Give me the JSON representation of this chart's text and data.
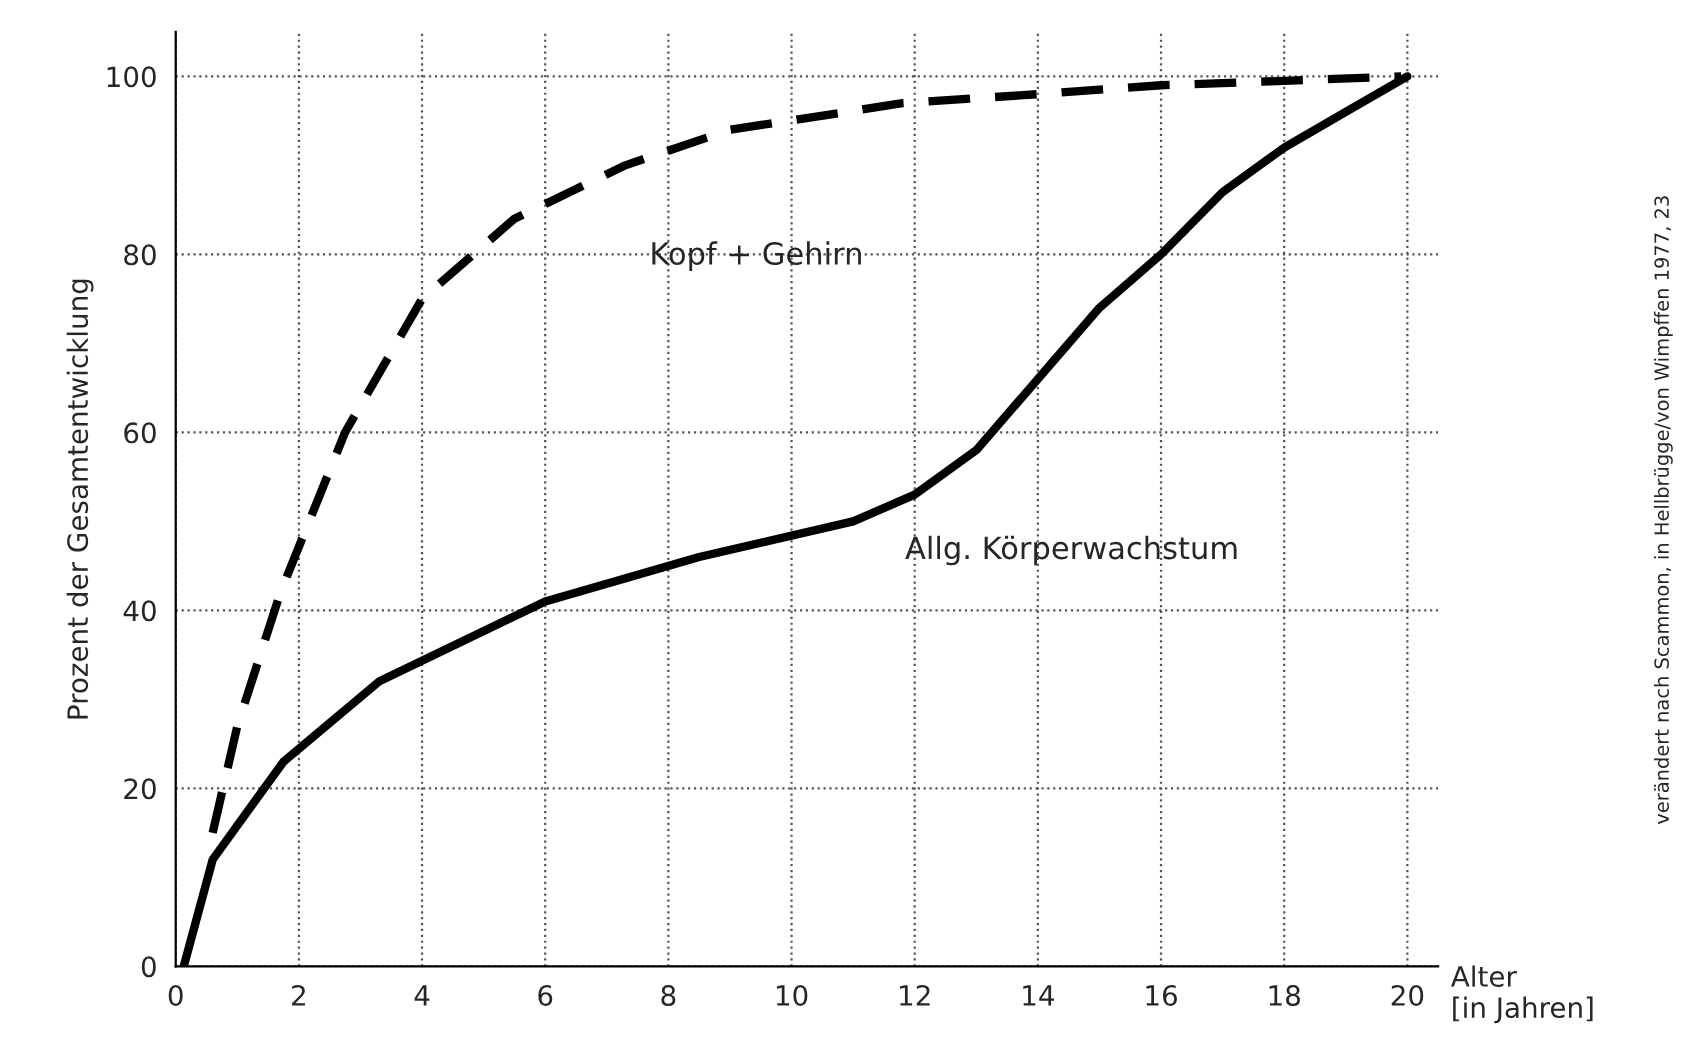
{
  "chart_data": {
    "type": "line",
    "ylabel": "Prozent der Gesamtentwicklung",
    "xlabel": "Alter\n[in Jahren]",
    "xlim": [
      0,
      20.5
    ],
    "ylim": [
      0,
      105
    ],
    "xticks": [
      0,
      2,
      4,
      6,
      8,
      10,
      12,
      14,
      16,
      18,
      20
    ],
    "yticks": [
      0,
      20,
      40,
      60,
      80,
      100
    ],
    "grid": true,
    "marker": "none",
    "series": [
      {
        "name": "Kopf + Gehirn",
        "color": "#000000",
        "line_style": "dashed",
        "x": [
          0.6,
          1.0,
          1.7,
          2.75,
          4.0,
          5.5,
          7.3,
          9.0,
          10.9,
          11.8,
          14.0,
          16.0,
          18.0,
          19.9
        ],
        "values": [
          15,
          27,
          42,
          60,
          75,
          84,
          90,
          94,
          96,
          97,
          98,
          99,
          99.5,
          100
        ]
      },
      {
        "name": "Allg. Körperwachstum",
        "color": "#000000",
        "line_style": "solid",
        "x": [
          0.13,
          0.6,
          1.75,
          3.3,
          6.0,
          8.5,
          11.0,
          12.0,
          13.0,
          14.0,
          15.0,
          16.0,
          17.0,
          18.0,
          19.0,
          20.0
        ],
        "values": [
          0,
          12,
          23,
          32,
          41,
          46,
          50,
          53,
          58,
          66,
          74,
          80,
          87,
          92,
          96,
          100
        ]
      }
    ],
    "annotations": [
      "verändert nach Scammon, in Hellbrügge/von Wimpffen 1977, 23"
    ]
  }
}
